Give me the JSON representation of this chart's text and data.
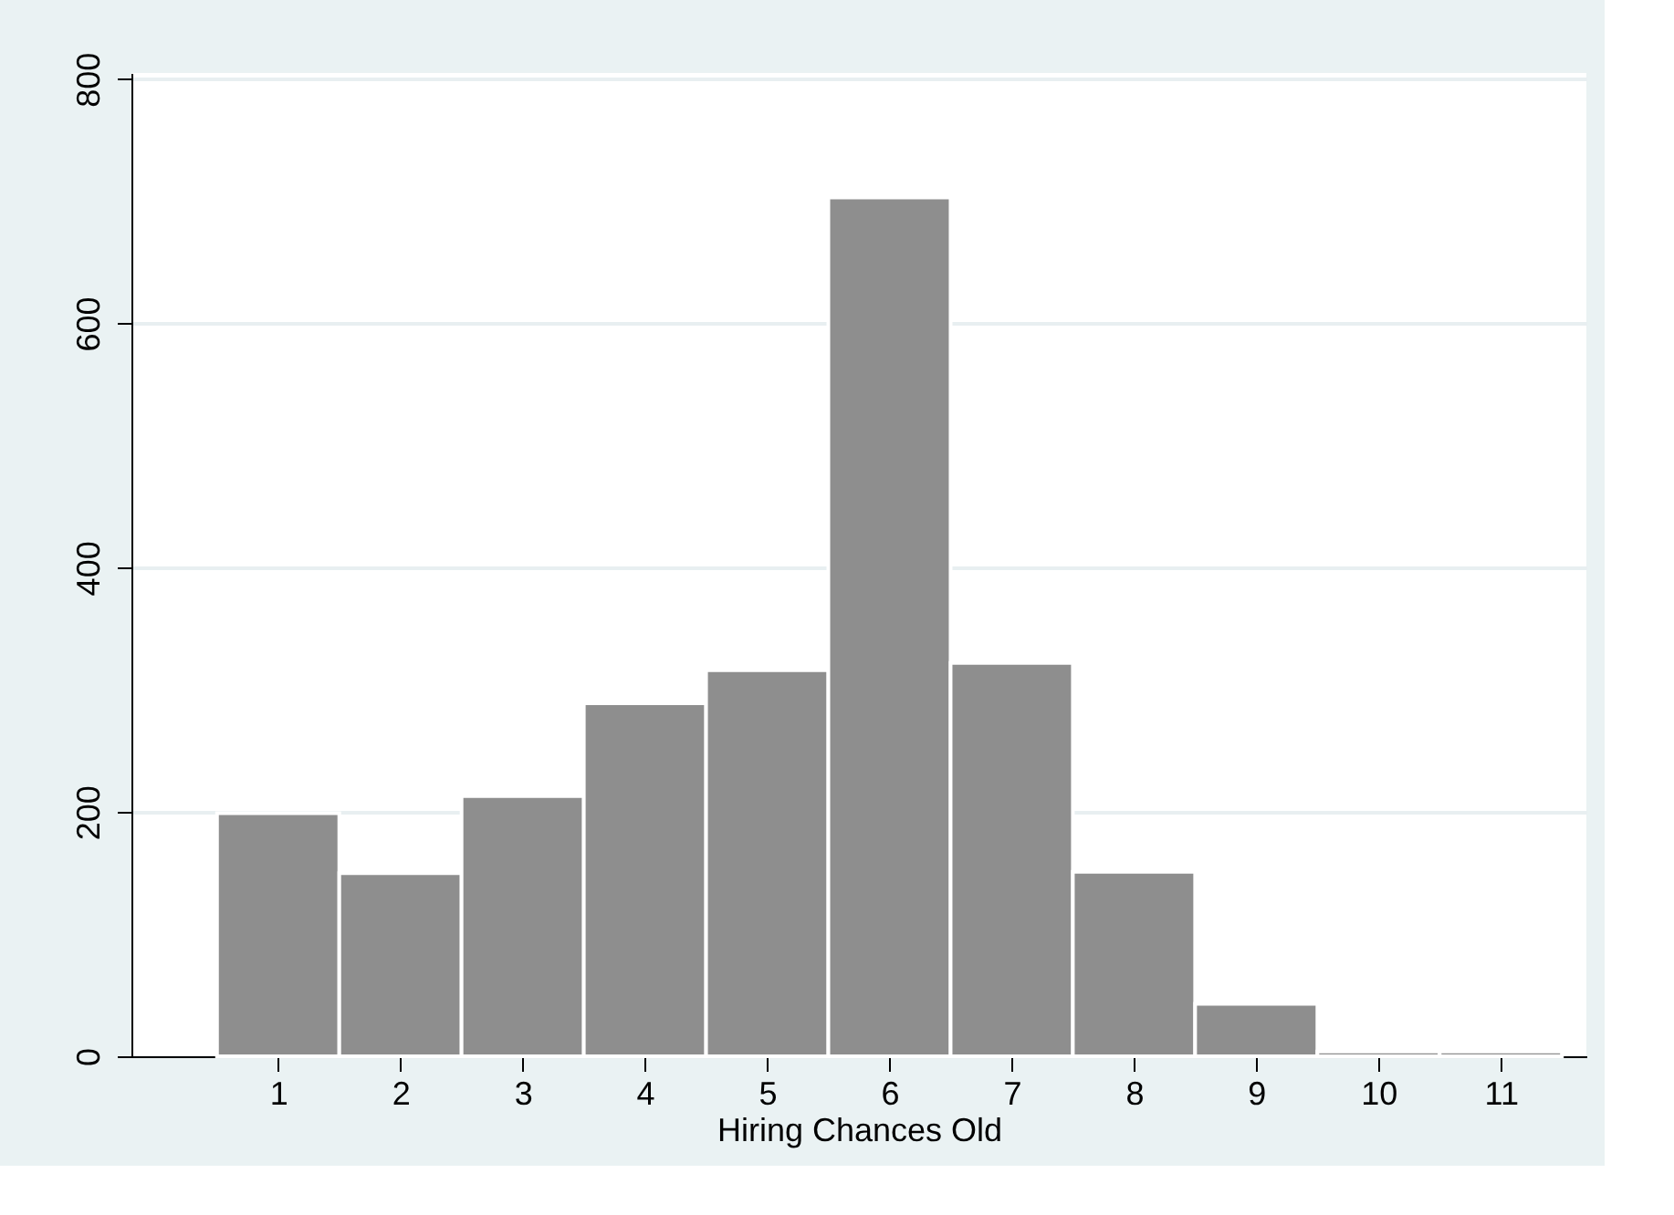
{
  "chart_data": {
    "type": "histogram",
    "xlabel": "Hiring Chances Old",
    "bins": [
      0.5,
      1.5,
      2.5,
      3.5,
      4.5,
      5.5,
      6.5,
      7.5,
      8.5,
      9.5,
      10.5,
      11.5
    ],
    "values": [
      199,
      150,
      213,
      289,
      316,
      703,
      322,
      151,
      43,
      4,
      4
    ],
    "color": "#8e8e8e",
    "xlim": [
      -0.2,
      11.7
    ],
    "xticks": [
      1,
      2,
      3,
      4,
      5,
      6,
      7,
      8,
      9,
      10,
      11
    ],
    "ylim": [
      0,
      805
    ],
    "yticks": [
      0,
      200,
      400,
      600,
      800
    ],
    "grid": "y"
  }
}
